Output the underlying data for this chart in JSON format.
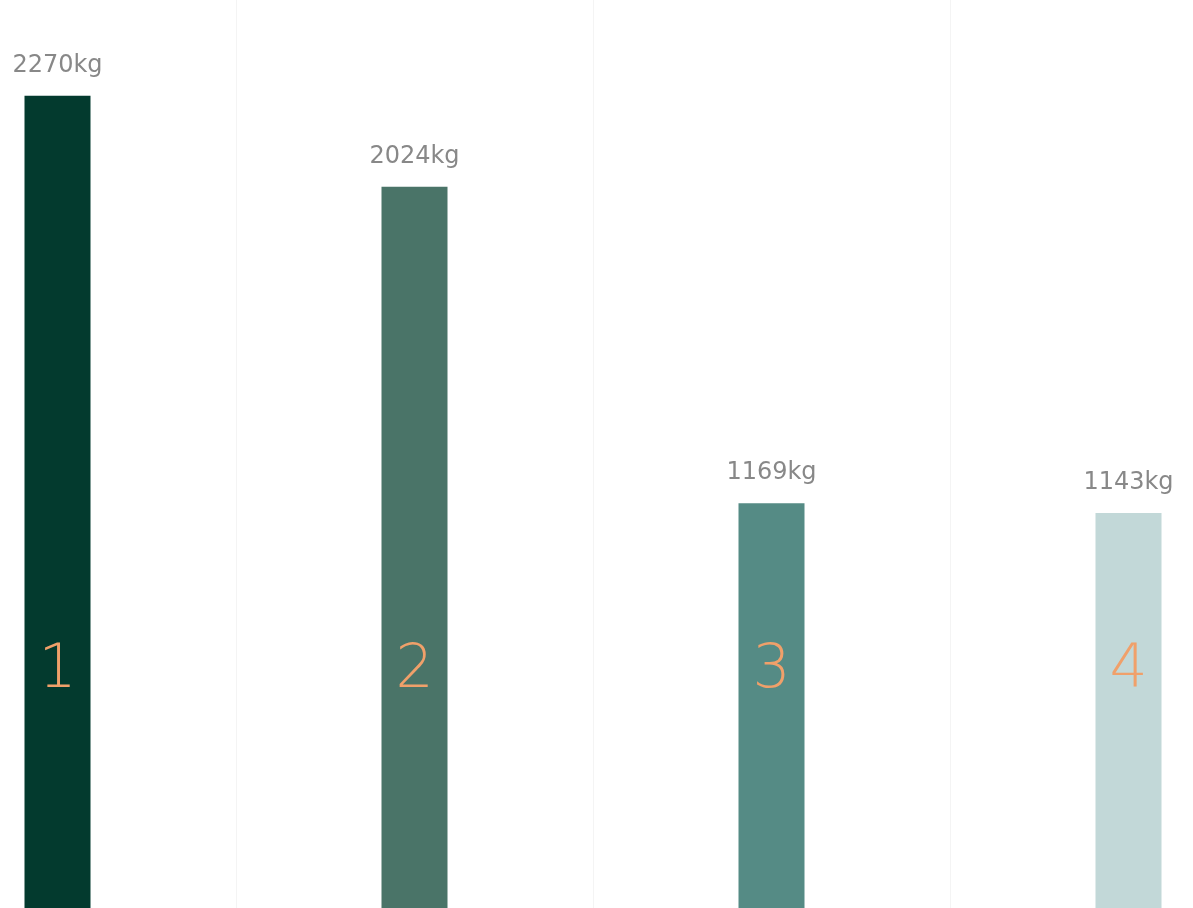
{
  "chart_data": {
    "type": "bar",
    "categories": [
      "1",
      "2",
      "3",
      "4"
    ],
    "values": [
      2270,
      2024,
      1169,
      1143
    ],
    "colors": [
      "#033a2e",
      "#4a7468",
      "#558b85",
      "#c2d8d8"
    ],
    "value_labels": [
      "2270kg",
      "2024kg",
      "1169kg",
      "1143kg"
    ],
    "grid": "x"
  }
}
